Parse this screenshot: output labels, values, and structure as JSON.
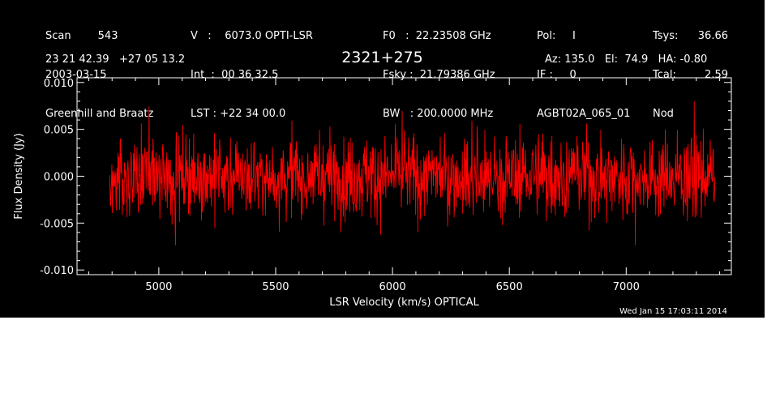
{
  "header": {
    "col1": [
      "Scan        543",
      "2003-03-15",
      "Greenhill and Braatz"
    ],
    "col2": [
      "V   :    6073.0 OPTI-LSR",
      "Int  :  00 36 32.5",
      "LST : +22 34 00.0"
    ],
    "col3": [
      "F0   :  22.23508 GHz",
      "Fsky :  21.79386 GHz",
      "BW   : 200.0000 MHz"
    ],
    "col4": [
      "Pol:     I",
      "IF :     0",
      "AGBT02A_065_01"
    ],
    "col5_labels": [
      "Tsys:",
      "Tcal:",
      "Nod"
    ],
    "col5_values": [
      "36.66",
      "2.59",
      ""
    ],
    "coords": "23 21 42.39   +27 05 13.2",
    "source": "2321+275",
    "pointing": "Az: 135.0   El:  74.9   HA: -0.80"
  },
  "footer": {
    "date": "Wed Jan 15 17:03:11 2014"
  },
  "colors": {
    "background": "#000000",
    "axes": "#ffffff",
    "trace": "#ff0000"
  },
  "chart_data": {
    "type": "line",
    "title": "2321+275",
    "xlabel": "LSR Velocity (km/s) OPTICAL",
    "ylabel": "Flux Density (Jy)",
    "xlim": [
      4650,
      7450
    ],
    "ylim": [
      -0.0105,
      0.0105
    ],
    "xticks": [
      5000,
      5500,
      6000,
      6500,
      7000
    ],
    "xtick_labels": [
      "5000",
      "5500",
      "6000",
      "6500",
      "7000"
    ],
    "yticks": [
      -0.01,
      -0.005,
      0.0,
      0.005,
      0.01
    ],
    "ytick_labels": [
      "-0.010",
      "-0.005",
      "0.000",
      "0.005",
      "0.010"
    ],
    "grid": false,
    "series": [
      {
        "x_start": 4790,
        "x_end": 7380,
        "n_points": 1400,
        "mean": 0.0,
        "rms": 0.0022,
        "min": -0.0082,
        "max": 0.0098
      }
    ]
  }
}
